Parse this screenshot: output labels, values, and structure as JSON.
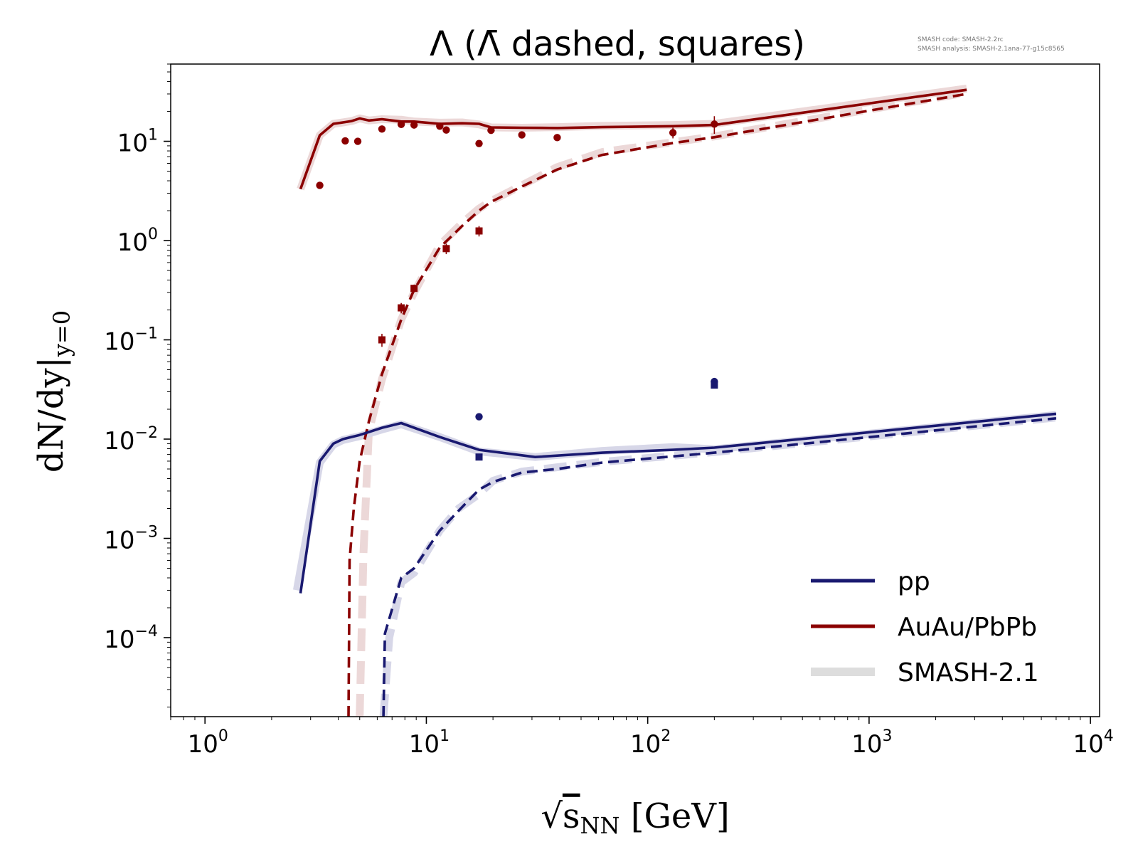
{
  "figure": {
    "title": "Λ (Λ̄ dashed, squares)",
    "version_note": [
      "SMASH code:      SMASH-2.2rc",
      "SMASH analysis: SMASH-2.1ana-77-g15c8565"
    ]
  },
  "colors": {
    "pp": "#191970",
    "AuAu": "#8b0000",
    "smash_pp": "#d7d7e8",
    "smash_AuAu": "#ecd8d8",
    "legend_band": "#dddddd"
  },
  "chart_data": {
    "type": "line",
    "title": "Λ (Λ̄ dashed, squares)",
    "xlabel": "√sNN [GeV]",
    "ylabel": "dN/dy|y=0",
    "xscale": "log",
    "yscale": "log",
    "xlim": [
      0.7,
      11000
    ],
    "ylim": [
      1.6e-05,
      60
    ],
    "x_ticks": [
      {
        "value": 1,
        "base": "10",
        "exp": "0"
      },
      {
        "value": 10,
        "base": "10",
        "exp": "1"
      },
      {
        "value": 100,
        "base": "10",
        "exp": "2"
      },
      {
        "value": 1000,
        "base": "10",
        "exp": "3"
      },
      {
        "value": 10000,
        "base": "10",
        "exp": "4"
      }
    ],
    "y_ticks": [
      {
        "value": 0.0001,
        "base": "10",
        "exp": "−4"
      },
      {
        "value": 0.001,
        "base": "10",
        "exp": "−3"
      },
      {
        "value": 0.01,
        "base": "10",
        "exp": "−2"
      },
      {
        "value": 0.1,
        "base": "10",
        "exp": "−1"
      },
      {
        "value": 1,
        "base": "10",
        "exp": "0"
      },
      {
        "value": 10,
        "base": "10",
        "exp": "1"
      }
    ],
    "legend": {
      "position": "lower-right",
      "entries": [
        {
          "label": "pp",
          "color_key": "pp"
        },
        {
          "label": "AuAu/PbPb",
          "color_key": "AuAu"
        },
        {
          "label": "SMASH-2.1",
          "color_key": "legend_band"
        }
      ]
    },
    "series": [
      {
        "id": "auau-lambda-ref",
        "system": "AuAu",
        "style": "band",
        "x": [
          2.7,
          3.3,
          3.8,
          4.2,
          4.6,
          5.0,
          5.5,
          6.3,
          7.7,
          8.8,
          11.5,
          14.5,
          17.3,
          19.6,
          27,
          39,
          62.4,
          130,
          200,
          2760
        ],
        "y": [
          3.3,
          11.5,
          15,
          15.5,
          16,
          17,
          16.2,
          16.7,
          16.5,
          15.8,
          15.4,
          15.5,
          14.8,
          13.8,
          13.7,
          13.9,
          14.3,
          14.6,
          15,
          34
        ]
      },
      {
        "id": "auau-antilambda-ref",
        "system": "AuAu",
        "style": "band",
        "x": [
          5.0,
          5.2,
          5.5,
          6.3,
          7.7,
          8.8,
          11.5,
          14.5,
          17.3,
          19.6,
          27,
          39,
          62.4,
          130,
          200,
          2760
        ],
        "y": [
          1.6e-05,
          0.0007,
          0.012,
          0.04,
          0.16,
          0.3,
          0.9,
          1.5,
          2.1,
          2.5,
          3.6,
          5.5,
          7.8,
          9.8,
          11.2,
          31
        ]
      },
      {
        "id": "pp-lambda-ref",
        "system": "pp",
        "style": "band",
        "x": [
          2.6,
          3.3,
          3.8,
          4.2,
          5.0,
          6.3,
          7.7,
          11.5,
          17.3,
          31,
          62.4,
          130,
          200,
          7000
        ],
        "y": [
          0.0003,
          0.0058,
          0.0088,
          0.0098,
          0.0107,
          0.0125,
          0.0141,
          0.0105,
          0.0075,
          0.0066,
          0.0076,
          0.0083,
          0.0079,
          0.0175
        ]
      },
      {
        "id": "pp-antilambda-ref",
        "system": "pp",
        "style": "band",
        "x": [
          6.4,
          6.8,
          7.7,
          8.8,
          11.5,
          14,
          17.3,
          20,
          27,
          39,
          62.4,
          130,
          200,
          7000
        ],
        "y": [
          1.6e-05,
          0.0001,
          0.00036,
          0.00045,
          0.0012,
          0.002,
          0.0028,
          0.0038,
          0.0047,
          0.0052,
          0.0059,
          0.0068,
          0.0074,
          0.0165
        ]
      },
      {
        "id": "auau-lambda",
        "system": "AuAu",
        "style": "solid",
        "x": [
          2.7,
          3.3,
          3.8,
          4.2,
          4.6,
          5.0,
          5.5,
          6.3,
          7.7,
          8.8,
          11.5,
          14.5,
          17.3,
          19.6,
          27,
          39,
          62.4,
          130,
          200,
          2760
        ],
        "y": [
          3.3,
          11.5,
          15,
          15.5,
          16,
          17,
          16.2,
          16.7,
          15.8,
          15.8,
          15.0,
          15.2,
          15.0,
          13.8,
          13.7,
          13.6,
          13.9,
          14.2,
          14.6,
          33
        ]
      },
      {
        "id": "auau-antilambda",
        "system": "AuAu",
        "style": "dashed",
        "x": [
          4.45,
          4.5,
          4.7,
          5.0,
          5.5,
          6.3,
          7.7,
          8.8,
          11.5,
          14.5,
          17.3,
          19.6,
          27,
          39,
          62.4,
          130,
          200,
          2760
        ],
        "y": [
          1.6e-05,
          0.0006,
          0.002,
          0.006,
          0.015,
          0.045,
          0.16,
          0.32,
          0.85,
          1.4,
          2.0,
          2.45,
          3.5,
          5.2,
          7.3,
          9.6,
          11.0,
          30
        ]
      },
      {
        "id": "pp-lambda",
        "system": "pp",
        "style": "solid",
        "x": [
          2.7,
          3.3,
          3.8,
          4.2,
          5.0,
          6.3,
          7.7,
          11.5,
          17.3,
          31,
          62.4,
          130,
          200,
          7000
        ],
        "y": [
          0.00028,
          0.006,
          0.009,
          0.01,
          0.011,
          0.013,
          0.0145,
          0.0105,
          0.0078,
          0.0066,
          0.0073,
          0.0078,
          0.0082,
          0.018
        ]
      },
      {
        "id": "pp-antilambda",
        "system": "pp",
        "style": "dashed",
        "x": [
          6.4,
          6.5,
          7.7,
          8.8,
          11.5,
          14,
          17.3,
          20,
          27,
          39,
          62.4,
          130,
          200,
          7000
        ],
        "y": [
          1.6e-05,
          0.00011,
          0.0004,
          0.0005,
          0.0012,
          0.0019,
          0.0031,
          0.0037,
          0.0046,
          0.005,
          0.0058,
          0.0067,
          0.0073,
          0.0162
        ]
      }
    ],
    "points": [
      {
        "id": "auau-lambda-data",
        "system": "AuAu",
        "marker": "circle",
        "x": [
          3.3,
          4.3,
          4.9,
          6.3,
          7.7,
          8.8,
          11.5,
          12.3,
          17.3,
          19.6,
          27,
          39,
          130,
          200
        ],
        "y": [
          3.6,
          10.1,
          10.0,
          13.3,
          14.8,
          14.6,
          14.2,
          13.0,
          9.5,
          12.9,
          11.6,
          10.9,
          12.2,
          14.9
        ],
        "err": [
          0.2,
          0.5,
          0.5,
          0.6,
          0.8,
          0.8,
          0.7,
          0.7,
          0.6,
          0.7,
          0.7,
          0.6,
          1.5,
          3.0
        ]
      },
      {
        "id": "auau-antilambda-data",
        "system": "AuAu",
        "marker": "square",
        "x": [
          6.3,
          7.7,
          8.8,
          12.3,
          17.3
        ],
        "y": [
          0.1,
          0.21,
          0.33,
          0.83,
          1.25
        ],
        "err": [
          0.015,
          0.025,
          0.03,
          0.1,
          0.15
        ]
      },
      {
        "id": "pp-lambda-data",
        "system": "pp",
        "marker": "circle",
        "x": [
          17.3,
          200
        ],
        "y": [
          0.0168,
          0.038
        ],
        "err": [
          0.0004,
          0.001
        ]
      },
      {
        "id": "pp-antilambda-data",
        "system": "pp",
        "marker": "square",
        "x": [
          17.3,
          200
        ],
        "y": [
          0.0066,
          0.035
        ],
        "err": [
          0.0003,
          0.001
        ]
      }
    ]
  }
}
